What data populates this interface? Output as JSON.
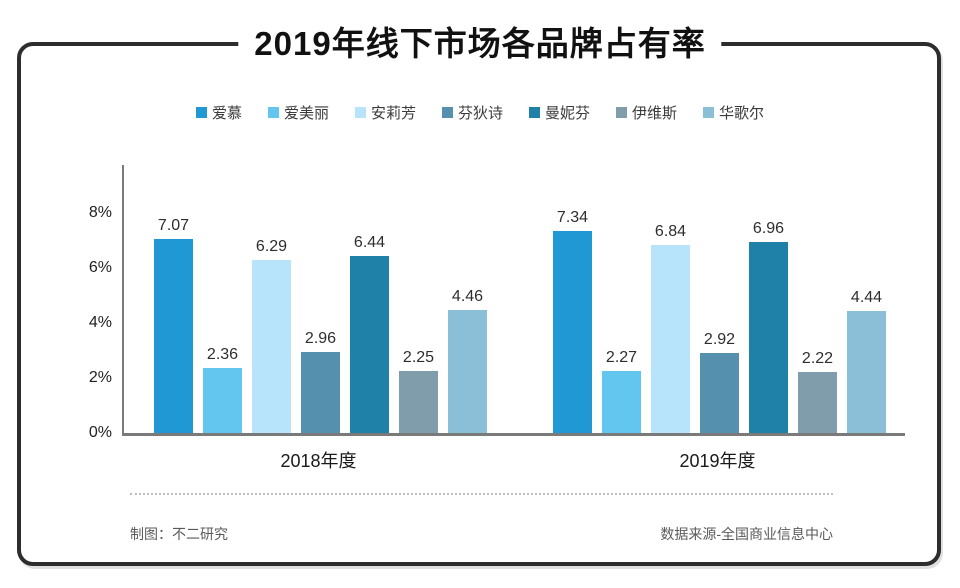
{
  "title": "2019年线下市场各品牌占有率",
  "footer": {
    "left": "制图：不二研究",
    "right": "数据来源-全国商业信息中心"
  },
  "chart_data": {
    "type": "bar",
    "title": "2019年线下市场各品牌占有率",
    "categories": [
      "2018年度",
      "2019年度"
    ],
    "series": [
      {
        "name": "爱慕",
        "color": "#2098d4",
        "values": [
          7.07,
          7.34
        ]
      },
      {
        "name": "爱美丽",
        "color": "#63c6ee",
        "values": [
          2.36,
          2.27
        ]
      },
      {
        "name": "安莉芳",
        "color": "#b7e4fa",
        "values": [
          6.29,
          6.84
        ]
      },
      {
        "name": "芬狄诗",
        "color": "#5590af",
        "values": [
          2.96,
          2.92
        ]
      },
      {
        "name": "曼妮芬",
        "color": "#1f80a8",
        "values": [
          6.44,
          6.96
        ]
      },
      {
        "name": "伊维斯",
        "color": "#7f9dab",
        "values": [
          2.25,
          2.22
        ]
      },
      {
        "name": "华歌尔",
        "color": "#8abfd7",
        "values": [
          4.46,
          4.44
        ]
      }
    ],
    "yticks": [
      "0%",
      "2%",
      "4%",
      "6%",
      "8%"
    ],
    "ytick_values": [
      0,
      2,
      4,
      6,
      8
    ],
    "ylim": [
      0,
      8
    ],
    "xlabel": "",
    "ylabel": "",
    "grid": false,
    "legend_position": "top",
    "value_labels": true
  }
}
